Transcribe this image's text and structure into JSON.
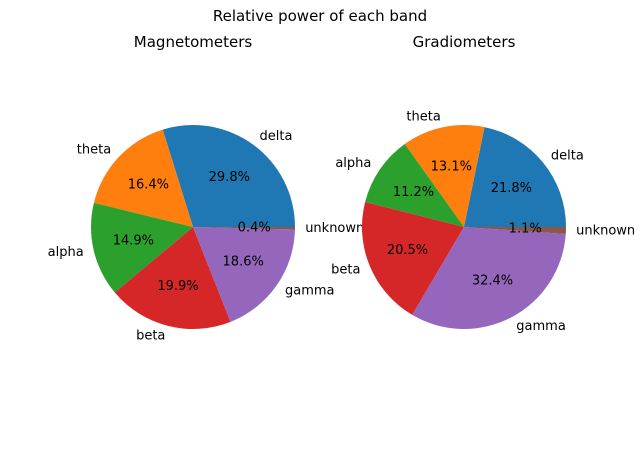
{
  "figure": {
    "suptitle": "Relative power of each band"
  },
  "chart_data": [
    {
      "type": "pie",
      "title": "Magnetometers",
      "categories": [
        "delta",
        "theta",
        "alpha",
        "beta",
        "gamma",
        "unknown"
      ],
      "values": [
        29.8,
        16.4,
        14.9,
        19.9,
        18.6,
        0.4
      ],
      "percent_labels": [
        "29.8%",
        "16.4%",
        "14.9%",
        "19.9%",
        "18.6%",
        "0.4%"
      ],
      "colors": [
        "#1f77b4",
        "#ff7f0e",
        "#2ca02c",
        "#d62728",
        "#9467bd",
        "#8c564b"
      ],
      "start_angle_deg": 0,
      "direction": "counterclockwise",
      "legend": "none"
    },
    {
      "type": "pie",
      "title": "Gradiometers",
      "categories": [
        "delta",
        "theta",
        "alpha",
        "beta",
        "gamma",
        "unknown"
      ],
      "values": [
        21.8,
        13.1,
        11.2,
        20.5,
        32.4,
        1.1
      ],
      "percent_labels": [
        "21.8%",
        "13.1%",
        "11.2%",
        "20.5%",
        "32.4%",
        "1.1%"
      ],
      "colors": [
        "#1f77b4",
        "#ff7f0e",
        "#2ca02c",
        "#d62728",
        "#9467bd",
        "#8c564b"
      ],
      "start_angle_deg": 0,
      "direction": "counterclockwise",
      "legend": "none"
    }
  ]
}
